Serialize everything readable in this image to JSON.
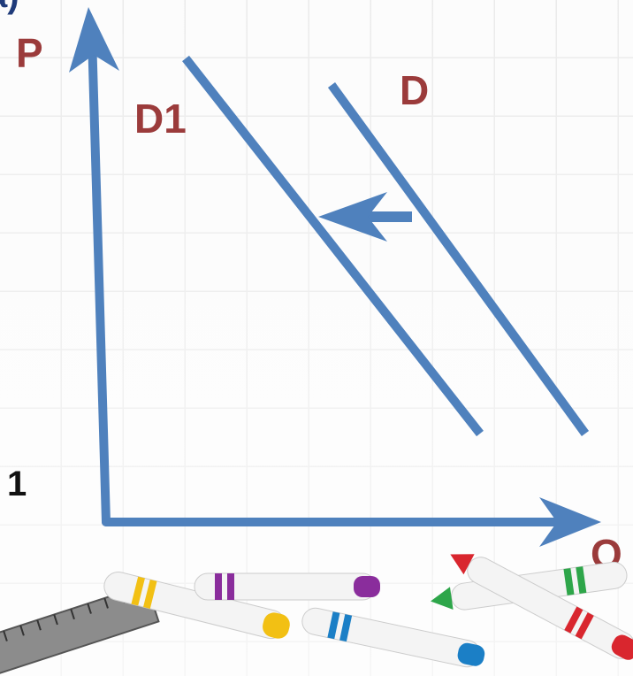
{
  "labels": {
    "corner": "a)",
    "p_axis": "P",
    "q_axis": "Q",
    "d1": "D1",
    "d": "D",
    "side_number": "1"
  }
}
